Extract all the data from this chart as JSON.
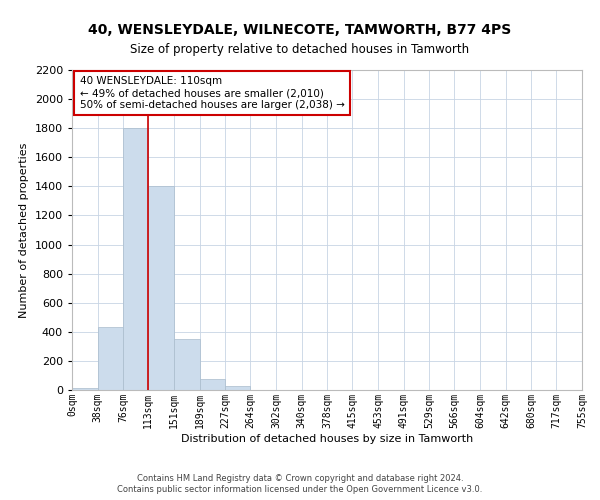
{
  "title": "40, WENSLEYDALE, WILNECOTE, TAMWORTH, B77 4PS",
  "subtitle": "Size of property relative to detached houses in Tamworth",
  "xlabel": "Distribution of detached houses by size in Tamworth",
  "ylabel": "Number of detached properties",
  "bar_edges": [
    0,
    38,
    76,
    113,
    151,
    189,
    227,
    264,
    302,
    340,
    378,
    415,
    453,
    491,
    529,
    566,
    604,
    642,
    680,
    717,
    755
  ],
  "bar_heights": [
    15,
    430,
    1800,
    1400,
    350,
    75,
    25,
    0,
    0,
    0,
    0,
    0,
    0,
    0,
    0,
    0,
    0,
    0,
    0,
    0
  ],
  "bar_color": "#ccdcec",
  "bar_edgecolor": "#aabccc",
  "vline_x": 113,
  "vline_color": "#cc0000",
  "annotation_title": "40 WENSLEYDALE: 110sqm",
  "annotation_line1": "← 49% of detached houses are smaller (2,010)",
  "annotation_line2": "50% of semi-detached houses are larger (2,038) →",
  "annotation_box_color": "#cc0000",
  "ylim": [
    0,
    2200
  ],
  "yticks": [
    0,
    200,
    400,
    600,
    800,
    1000,
    1200,
    1400,
    1600,
    1800,
    2000,
    2200
  ],
  "tick_labels": [
    "0sqm",
    "38sqm",
    "76sqm",
    "113sqm",
    "151sqm",
    "189sqm",
    "227sqm",
    "264sqm",
    "302sqm",
    "340sqm",
    "378sqm",
    "415sqm",
    "453sqm",
    "491sqm",
    "529sqm",
    "566sqm",
    "604sqm",
    "642sqm",
    "680sqm",
    "717sqm",
    "755sqm"
  ],
  "footer_line1": "Contains HM Land Registry data © Crown copyright and database right 2024.",
  "footer_line2": "Contains public sector information licensed under the Open Government Licence v3.0.",
  "background_color": "#ffffff",
  "grid_color": "#c8d4e4",
  "title_fontsize": 10,
  "subtitle_fontsize": 8.5,
  "ylabel_fontsize": 8,
  "xlabel_fontsize": 8,
  "ytick_fontsize": 8,
  "xtick_fontsize": 7,
  "annotation_fontsize": 7.5,
  "footer_fontsize": 6
}
